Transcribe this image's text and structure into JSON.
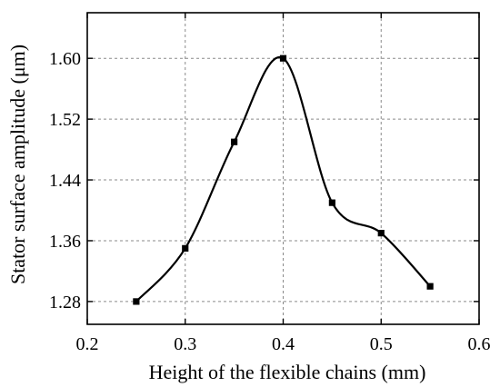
{
  "chart_data": {
    "type": "line",
    "title": "",
    "xlabel": "Height of the flexible chains (mm)",
    "ylabel": "Stator surface amplitude (μm)",
    "xlim": [
      0.2,
      0.6
    ],
    "ylim": [
      1.25,
      1.66
    ],
    "x_ticks": [
      0.2,
      0.3,
      0.4,
      0.5,
      0.6
    ],
    "x_tick_labels": [
      "0.2",
      "0.3",
      "0.4",
      "0.5",
      "0.6"
    ],
    "y_ticks": [
      1.28,
      1.36,
      1.44,
      1.52,
      1.6
    ],
    "y_tick_labels": [
      "1.28",
      "1.36",
      "1.44",
      "1.52",
      "1.60"
    ],
    "grid": true,
    "legend": "none",
    "marker": "square",
    "line_color": "#000000",
    "series": [
      {
        "x": [
          0.25,
          0.3,
          0.35,
          0.4,
          0.45,
          0.5,
          0.55
        ],
        "values": [
          1.28,
          1.35,
          1.49,
          1.6,
          1.41,
          1.37,
          1.3
        ]
      }
    ]
  }
}
